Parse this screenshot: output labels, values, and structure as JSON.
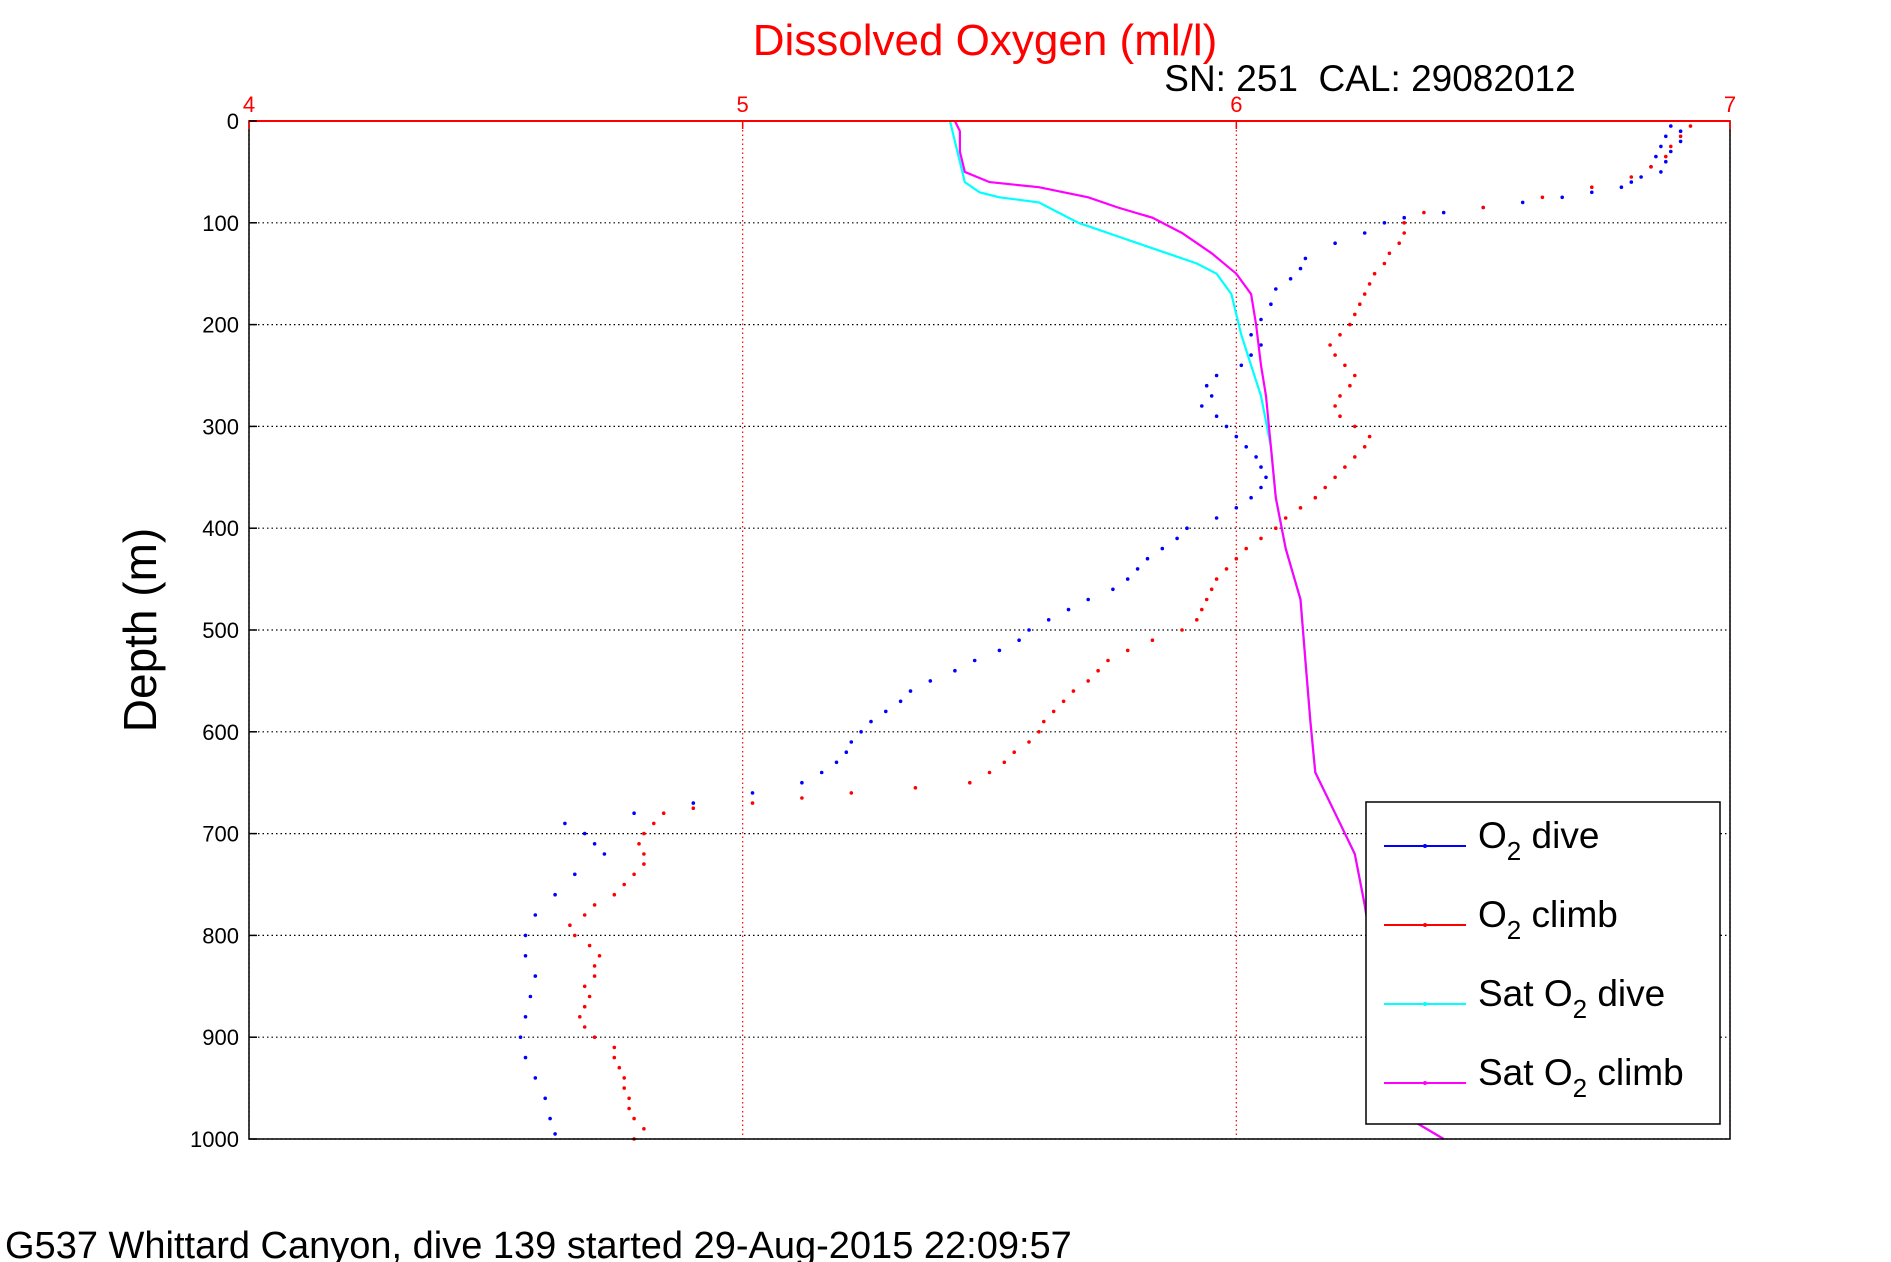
{
  "chart_data": {
    "type": "scatter",
    "title": "Dissolved Oxygen (ml/l)",
    "subtitle": "SN: 251  CAL: 29082012",
    "ylabel": "Depth (m)",
    "footer": "G537 Whittard Canyon, dive 139 started 29-Aug-2015 22:09:57",
    "xlim": [
      4,
      7
    ],
    "ylim": [
      0,
      1000
    ],
    "y_reversed": true,
    "x_axis_position": "top",
    "x_ticks": [
      "4",
      "5",
      "6",
      "7"
    ],
    "y_ticks": [
      "0",
      "100",
      "200",
      "300",
      "400",
      "500",
      "600",
      "700",
      "800",
      "900",
      "1000"
    ],
    "grid": true,
    "legend_position": "bottom-right",
    "colors": {
      "title": "#ff0000",
      "x_tick": "#ff0000",
      "x_grid": "#ff0000",
      "y_grid": "#000000"
    },
    "series": [
      {
        "key": "o2_dive",
        "legend": [
          "O",
          "2",
          " dive"
        ],
        "color": "#0000ff",
        "style": "dots",
        "points": [
          [
            6.88,
            5
          ],
          [
            6.9,
            10
          ],
          [
            6.87,
            15
          ],
          [
            6.9,
            20
          ],
          [
            6.86,
            25
          ],
          [
            6.88,
            30
          ],
          [
            6.85,
            35
          ],
          [
            6.87,
            40
          ],
          [
            6.84,
            45
          ],
          [
            6.86,
            50
          ],
          [
            6.82,
            55
          ],
          [
            6.8,
            60
          ],
          [
            6.78,
            65
          ],
          [
            6.72,
            70
          ],
          [
            6.66,
            75
          ],
          [
            6.58,
            80
          ],
          [
            6.5,
            85
          ],
          [
            6.42,
            90
          ],
          [
            6.34,
            95
          ],
          [
            6.3,
            100
          ],
          [
            6.26,
            110
          ],
          [
            6.2,
            120
          ],
          [
            6.14,
            135
          ],
          [
            6.13,
            145
          ],
          [
            6.11,
            155
          ],
          [
            6.08,
            165
          ],
          [
            6.07,
            180
          ],
          [
            6.05,
            195
          ],
          [
            6.03,
            210
          ],
          [
            6.05,
            220
          ],
          [
            6.03,
            230
          ],
          [
            6.01,
            240
          ],
          [
            5.96,
            250
          ],
          [
            5.94,
            260
          ],
          [
            5.95,
            270
          ],
          [
            5.93,
            280
          ],
          [
            5.96,
            290
          ],
          [
            5.98,
            300
          ],
          [
            6.0,
            310
          ],
          [
            6.02,
            320
          ],
          [
            6.04,
            330
          ],
          [
            6.05,
            340
          ],
          [
            6.06,
            350
          ],
          [
            6.05,
            360
          ],
          [
            6.03,
            370
          ],
          [
            6.0,
            380
          ],
          [
            5.96,
            390
          ],
          [
            5.9,
            400
          ],
          [
            5.88,
            410
          ],
          [
            5.85,
            420
          ],
          [
            5.82,
            430
          ],
          [
            5.8,
            440
          ],
          [
            5.78,
            450
          ],
          [
            5.75,
            460
          ],
          [
            5.7,
            470
          ],
          [
            5.66,
            480
          ],
          [
            5.62,
            490
          ],
          [
            5.58,
            500
          ],
          [
            5.56,
            510
          ],
          [
            5.52,
            520
          ],
          [
            5.47,
            530
          ],
          [
            5.43,
            540
          ],
          [
            5.38,
            550
          ],
          [
            5.34,
            560
          ],
          [
            5.32,
            570
          ],
          [
            5.29,
            580
          ],
          [
            5.26,
            590
          ],
          [
            5.24,
            600
          ],
          [
            5.22,
            610
          ],
          [
            5.21,
            620
          ],
          [
            5.19,
            630
          ],
          [
            5.16,
            640
          ],
          [
            5.12,
            650
          ],
          [
            5.02,
            660
          ],
          [
            4.9,
            670
          ],
          [
            4.78,
            680
          ],
          [
            4.64,
            690
          ],
          [
            4.68,
            700
          ],
          [
            4.7,
            710
          ],
          [
            4.72,
            720
          ],
          [
            4.66,
            740
          ],
          [
            4.62,
            760
          ],
          [
            4.58,
            780
          ],
          [
            4.56,
            800
          ],
          [
            4.56,
            820
          ],
          [
            4.58,
            840
          ],
          [
            4.57,
            860
          ],
          [
            4.56,
            880
          ],
          [
            4.55,
            900
          ],
          [
            4.56,
            920
          ],
          [
            4.58,
            940
          ],
          [
            4.6,
            960
          ],
          [
            4.61,
            980
          ],
          [
            4.62,
            995
          ]
        ]
      },
      {
        "key": "o2_climb",
        "legend": [
          "O",
          "2",
          " climb"
        ],
        "color": "#ff0000",
        "style": "dots",
        "points": [
          [
            4.78,
            1000
          ],
          [
            4.8,
            990
          ],
          [
            4.78,
            980
          ],
          [
            4.77,
            970
          ],
          [
            4.77,
            960
          ],
          [
            4.76,
            950
          ],
          [
            4.76,
            940
          ],
          [
            4.75,
            930
          ],
          [
            4.74,
            920
          ],
          [
            4.74,
            910
          ],
          [
            4.7,
            900
          ],
          [
            4.68,
            890
          ],
          [
            4.67,
            880
          ],
          [
            4.68,
            870
          ],
          [
            4.69,
            860
          ],
          [
            4.68,
            850
          ],
          [
            4.7,
            840
          ],
          [
            4.7,
            830
          ],
          [
            4.71,
            820
          ],
          [
            4.69,
            810
          ],
          [
            4.66,
            800
          ],
          [
            4.65,
            790
          ],
          [
            4.68,
            780
          ],
          [
            4.7,
            770
          ],
          [
            4.74,
            760
          ],
          [
            4.76,
            750
          ],
          [
            4.78,
            740
          ],
          [
            4.8,
            730
          ],
          [
            4.8,
            720
          ],
          [
            4.79,
            710
          ],
          [
            4.8,
            700
          ],
          [
            4.82,
            690
          ],
          [
            4.84,
            680
          ],
          [
            4.9,
            675
          ],
          [
            5.02,
            670
          ],
          [
            5.12,
            665
          ],
          [
            5.22,
            660
          ],
          [
            5.35,
            655
          ],
          [
            5.46,
            650
          ],
          [
            5.5,
            640
          ],
          [
            5.53,
            630
          ],
          [
            5.55,
            620
          ],
          [
            5.58,
            610
          ],
          [
            5.6,
            600
          ],
          [
            5.61,
            590
          ],
          [
            5.63,
            580
          ],
          [
            5.65,
            570
          ],
          [
            5.67,
            560
          ],
          [
            5.7,
            550
          ],
          [
            5.72,
            540
          ],
          [
            5.74,
            530
          ],
          [
            5.78,
            520
          ],
          [
            5.83,
            510
          ],
          [
            5.89,
            500
          ],
          [
            5.92,
            490
          ],
          [
            5.93,
            480
          ],
          [
            5.94,
            470
          ],
          [
            5.95,
            460
          ],
          [
            5.96,
            450
          ],
          [
            5.98,
            440
          ],
          [
            6.0,
            430
          ],
          [
            6.02,
            420
          ],
          [
            6.05,
            410
          ],
          [
            6.08,
            400
          ],
          [
            6.1,
            390
          ],
          [
            6.13,
            380
          ],
          [
            6.16,
            370
          ],
          [
            6.18,
            360
          ],
          [
            6.2,
            350
          ],
          [
            6.22,
            340
          ],
          [
            6.24,
            330
          ],
          [
            6.26,
            320
          ],
          [
            6.27,
            310
          ],
          [
            6.24,
            300
          ],
          [
            6.21,
            290
          ],
          [
            6.2,
            280
          ],
          [
            6.21,
            270
          ],
          [
            6.23,
            260
          ],
          [
            6.24,
            250
          ],
          [
            6.22,
            240
          ],
          [
            6.2,
            230
          ],
          [
            6.19,
            220
          ],
          [
            6.21,
            210
          ],
          [
            6.23,
            200
          ],
          [
            6.24,
            190
          ],
          [
            6.25,
            180
          ],
          [
            6.26,
            170
          ],
          [
            6.27,
            160
          ],
          [
            6.28,
            150
          ],
          [
            6.3,
            140
          ],
          [
            6.31,
            130
          ],
          [
            6.33,
            120
          ],
          [
            6.34,
            110
          ],
          [
            6.34,
            100
          ],
          [
            6.38,
            90
          ],
          [
            6.5,
            85
          ],
          [
            6.62,
            75
          ],
          [
            6.72,
            65
          ],
          [
            6.8,
            55
          ],
          [
            6.84,
            45
          ],
          [
            6.87,
            35
          ],
          [
            6.88,
            25
          ],
          [
            6.9,
            15
          ],
          [
            6.92,
            5
          ]
        ]
      },
      {
        "key": "sat_o2_dive",
        "legend": [
          "Sat O",
          "2",
          " dive"
        ],
        "color": "#00ffff",
        "style": "line",
        "points": [
          [
            5.42,
            0
          ],
          [
            5.43,
            20
          ],
          [
            5.44,
            40
          ],
          [
            5.45,
            60
          ],
          [
            5.48,
            70
          ],
          [
            5.52,
            75
          ],
          [
            5.6,
            80
          ],
          [
            5.64,
            90
          ],
          [
            5.68,
            100
          ],
          [
            5.74,
            110
          ],
          [
            5.8,
            120
          ],
          [
            5.86,
            130
          ],
          [
            5.92,
            140
          ],
          [
            5.96,
            150
          ],
          [
            5.99,
            170
          ],
          [
            6.0,
            190
          ],
          [
            6.01,
            210
          ],
          [
            6.03,
            240
          ],
          [
            6.05,
            270
          ],
          [
            6.07,
            320
          ],
          [
            6.08,
            370
          ],
          [
            6.1,
            420
          ],
          [
            6.13,
            470
          ],
          [
            6.14,
            530
          ],
          [
            6.15,
            590
          ],
          [
            6.16,
            640
          ],
          [
            6.2,
            680
          ],
          [
            6.24,
            720
          ],
          [
            6.26,
            770
          ],
          [
            6.28,
            830
          ],
          [
            6.31,
            900
          ],
          [
            6.35,
            980
          ],
          [
            6.42,
            1000
          ]
        ]
      },
      {
        "key": "sat_o2_climb",
        "legend": [
          "Sat O",
          "2",
          " climb"
        ],
        "color": "#ff00ff",
        "style": "line",
        "points": [
          [
            6.42,
            1000
          ],
          [
            6.35,
            980
          ],
          [
            6.31,
            900
          ],
          [
            6.28,
            830
          ],
          [
            6.26,
            770
          ],
          [
            6.24,
            720
          ],
          [
            6.2,
            680
          ],
          [
            6.16,
            640
          ],
          [
            6.15,
            590
          ],
          [
            6.14,
            530
          ],
          [
            6.13,
            470
          ],
          [
            6.1,
            420
          ],
          [
            6.08,
            370
          ],
          [
            6.07,
            320
          ],
          [
            6.06,
            270
          ],
          [
            6.05,
            240
          ],
          [
            6.04,
            200
          ],
          [
            6.03,
            170
          ],
          [
            6.0,
            150
          ],
          [
            5.95,
            130
          ],
          [
            5.89,
            110
          ],
          [
            5.83,
            95
          ],
          [
            5.76,
            85
          ],
          [
            5.7,
            75
          ],
          [
            5.6,
            65
          ],
          [
            5.5,
            60
          ],
          [
            5.45,
            50
          ],
          [
            5.44,
            30
          ],
          [
            5.44,
            10
          ],
          [
            5.43,
            0
          ]
        ]
      }
    ]
  }
}
